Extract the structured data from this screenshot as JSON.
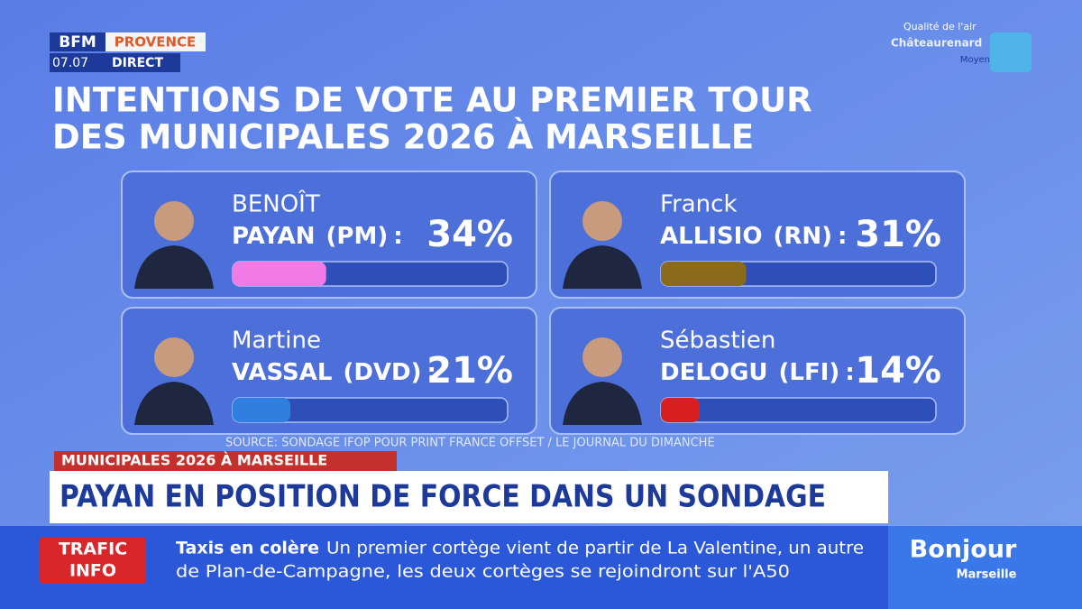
{
  "header": {
    "channel": "BFM",
    "region": "PROVENCE",
    "time": "07.07",
    "live": "DIRECT"
  },
  "air_quality": {
    "label": "Qualité de l'air",
    "city": "Châteaurenard",
    "level": "Moyen"
  },
  "chart_data": {
    "type": "bar",
    "title": [
      "INTENTIONS DE VOTE AU PREMIER TOUR",
      "DES MUNICIPALES 2026 À MARSEILLE"
    ],
    "candidates": [
      {
        "first_name": "BENOÎT",
        "last_name": "PAYAN",
        "party": "(PM)"
      },
      {
        "first_name": "Franck",
        "last_name": "ALLISIO",
        "party": "(RN)"
      },
      {
        "first_name": "Martine",
        "last_name": "VASSAL",
        "party": "(DVD)"
      },
      {
        "first_name": "Sébastien",
        "last_name": "DELOGU",
        "party": "(LFI)"
      }
    ],
    "separator": ":",
    "values": [
      34,
      31,
      21,
      14
    ],
    "value_labels": [
      "34%",
      "31%",
      "21%",
      "14%"
    ],
    "colors": [
      "#f07ae6",
      "#8c6a1c",
      "#2f7fe0",
      "#d81e1e"
    ],
    "xlim": [
      0,
      100
    ],
    "source": "SOURCE:  SONDAGE IFOP POUR PRINT FRANCE OFFSET / LE JOURNAL DU DIMANCHE"
  },
  "banner": {
    "tag": "MUNICIPALES 2026 À MARSEILLE",
    "headline": "PAYAN EN POSITION DE FORCE DANS UN SONDAGE"
  },
  "ticker": {
    "label": [
      "TRAFIC",
      "INFO"
    ],
    "topic": "Taxis en colère",
    "lines": [
      "Un premier cortège vient de partir de La Valentine, un autre",
      "de Plan-de-Campagne, les deux cortèges se rejoindront sur l'A50"
    ]
  },
  "show": {
    "name": "Bonjour",
    "city": "Marseille"
  }
}
